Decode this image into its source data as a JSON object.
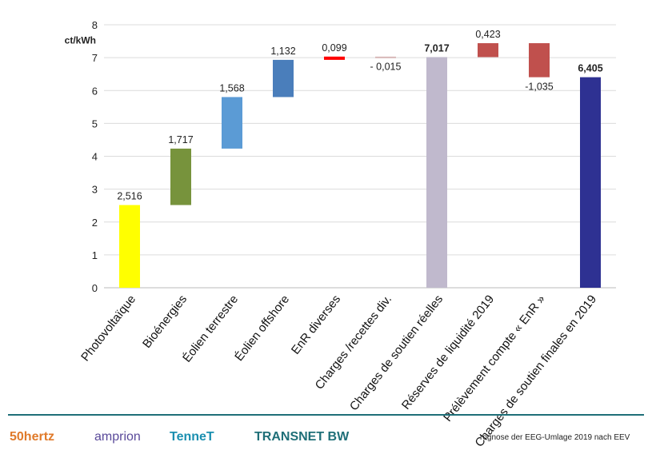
{
  "chart_data": {
    "type": "waterfall",
    "ylabel": "ct/kWh",
    "ylim": [
      0,
      8
    ],
    "yticks": [
      0,
      1,
      2,
      3,
      4,
      5,
      6,
      7,
      8
    ],
    "grid": true,
    "categories": [
      "Photovoltaïque",
      "Bioénergies",
      "Éolien terrestre",
      "Éolien offshore",
      "EnR diverses",
      "Charges /recettes div.",
      "Charges de soutien réelles",
      "Réserves de liquidité  2019",
      "Prélèvement  compte « EnR »",
      "Charges de soutien finales en 2019"
    ],
    "bars": [
      {
        "start": 0,
        "end": 2.516,
        "label": "2,516",
        "color": "#ffff00",
        "bold": false
      },
      {
        "start": 2.516,
        "end": 4.233,
        "label": "1,717",
        "color": "#77933c",
        "bold": false
      },
      {
        "start": 4.233,
        "end": 5.801,
        "label": "1,568",
        "color": "#5b9bd5",
        "bold": false
      },
      {
        "start": 5.801,
        "end": 6.933,
        "label": "1,132",
        "color": "#4a7ebb",
        "bold": false
      },
      {
        "start": 6.933,
        "end": 7.032,
        "label": "0,099",
        "color": "#ff0000",
        "bold": false
      },
      {
        "start": 7.032,
        "end": 7.017,
        "label": "- 0,015",
        "color": "#d8b8b8",
        "bold": false
      },
      {
        "start": 0,
        "end": 7.017,
        "label": "7,017",
        "color": "#c0b9cd",
        "bold": true
      },
      {
        "start": 7.017,
        "end": 7.44,
        "label": "0,423",
        "color": "#c0504d",
        "bold": false
      },
      {
        "start": 7.44,
        "end": 6.405,
        "label": "-1,035",
        "color": "#c0504d",
        "bold": false
      },
      {
        "start": 0,
        "end": 6.405,
        "label": "6,405",
        "color": "#2e3192",
        "bold": true
      }
    ]
  },
  "footer": {
    "logos": [
      "50hertz",
      "amprion",
      "TenneT",
      "TRANSNET BW"
    ],
    "source": "rognose der EEG-Umlage 2019 nach EEV"
  }
}
